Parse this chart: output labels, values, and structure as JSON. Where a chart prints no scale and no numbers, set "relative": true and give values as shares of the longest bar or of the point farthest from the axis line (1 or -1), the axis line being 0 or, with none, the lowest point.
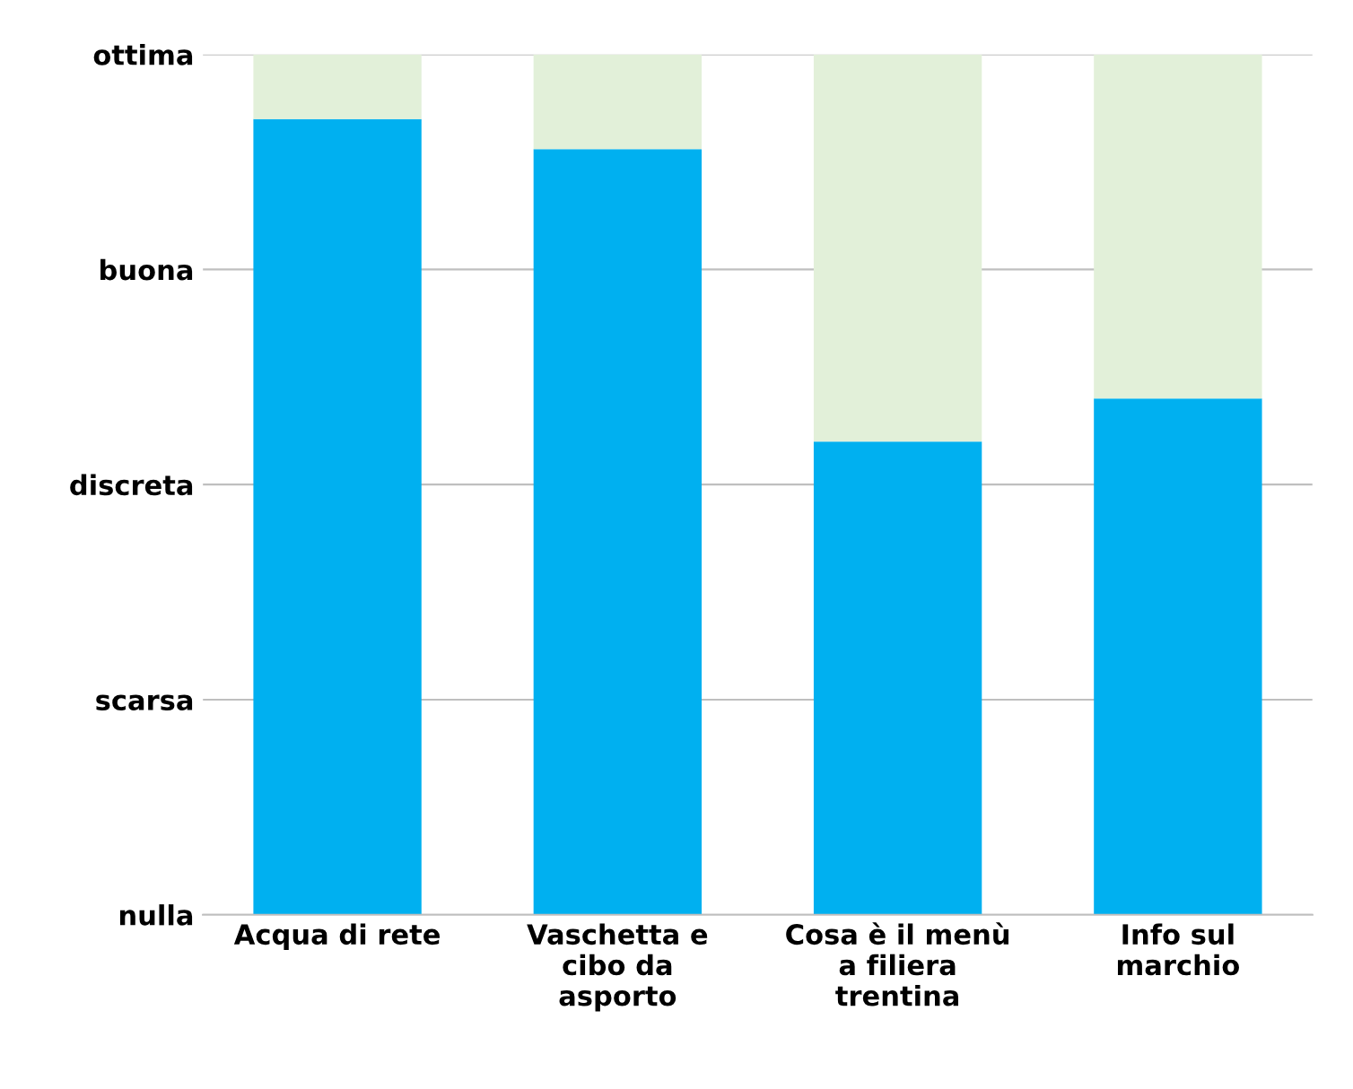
{
  "chart_data": {
    "type": "bar",
    "stacked": true,
    "relative": true,
    "categories": [
      "Acqua di rete",
      "Vaschetta e\ncibo da\nasporto",
      "Cosa è il menù\na filiera\ntrentina",
      "Info sul\nmarchio"
    ],
    "series": [
      {
        "color": "#00b0f0",
        "values": [
          0.925,
          0.89,
          0.55,
          0.6
        ]
      },
      {
        "color": "#e2f0d9",
        "values": [
          0.075,
          0.11,
          0.45,
          0.4
        ]
      }
    ],
    "annotations": [
      "nulla",
      "scarsa",
      "discreta",
      "buona",
      "ottima"
    ],
    "grid": "y",
    "legend": false
  }
}
